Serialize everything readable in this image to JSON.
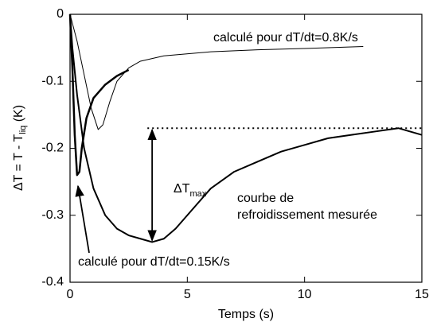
{
  "chart_data": {
    "type": "line",
    "xlabel": "Temps (s)",
    "ylabel": {
      "text": "ΔT = T - T",
      "sub": "liq",
      "unit": " (K)"
    },
    "xlim": [
      0,
      15
    ],
    "ylim": [
      -0.4,
      0
    ],
    "xticks": [
      0,
      5,
      10,
      15
    ],
    "yticks": [
      0,
      -0.1,
      -0.2,
      -0.3,
      -0.4
    ],
    "series": [
      {
        "color": "#000000",
        "line_width": 1,
        "x": [
          0,
          0.3,
          0.6,
          0.9,
          1.2,
          1.4,
          1.7,
          2.0,
          2.5,
          3,
          4,
          6,
          8,
          10,
          12.5
        ],
        "values": [
          0,
          -0.04,
          -0.09,
          -0.14,
          -0.172,
          -0.165,
          -0.13,
          -0.1,
          -0.08,
          -0.07,
          -0.062,
          -0.056,
          -0.053,
          -0.051,
          -0.048
        ]
      },
      {
        "color": "#000000",
        "line_width": 2.5,
        "x": [
          0,
          0.1,
          0.2,
          0.3,
          0.4,
          0.5,
          0.7,
          1.0,
          1.5,
          2.0,
          2.5
        ],
        "values": [
          0,
          -0.08,
          -0.18,
          -0.24,
          -0.235,
          -0.2,
          -0.155,
          -0.125,
          -0.105,
          -0.092,
          -0.083
        ]
      },
      {
        "color": "#000000",
        "line_width": 2,
        "x": [
          0,
          0.1,
          0.3,
          0.6,
          1,
          1.5,
          2,
          2.5,
          3,
          3.5,
          4,
          4.5,
          5,
          5.5,
          6,
          7,
          8,
          9,
          10,
          11,
          12,
          13,
          14,
          14.5,
          15
        ],
        "values": [
          0,
          -0.05,
          -0.12,
          -0.2,
          -0.26,
          -0.3,
          -0.32,
          -0.33,
          -0.335,
          -0.34,
          -0.335,
          -0.32,
          -0.3,
          -0.28,
          -0.26,
          -0.235,
          -0.22,
          -0.205,
          -0.195,
          -0.185,
          -0.18,
          -0.175,
          -0.17,
          -0.175,
          -0.18
        ]
      }
    ],
    "reference_line": {
      "y": -0.17,
      "x_start": 3.3
    },
    "annotations": {
      "fast": "calculé pour dT/dt=0.8K/s",
      "slow": "calculé pour dT/dt=0.15K/s",
      "measured": [
        "courbe de",
        "refroidissement mesurée"
      ],
      "dtmax": {
        "text": "ΔT",
        "sub": "max"
      }
    }
  }
}
